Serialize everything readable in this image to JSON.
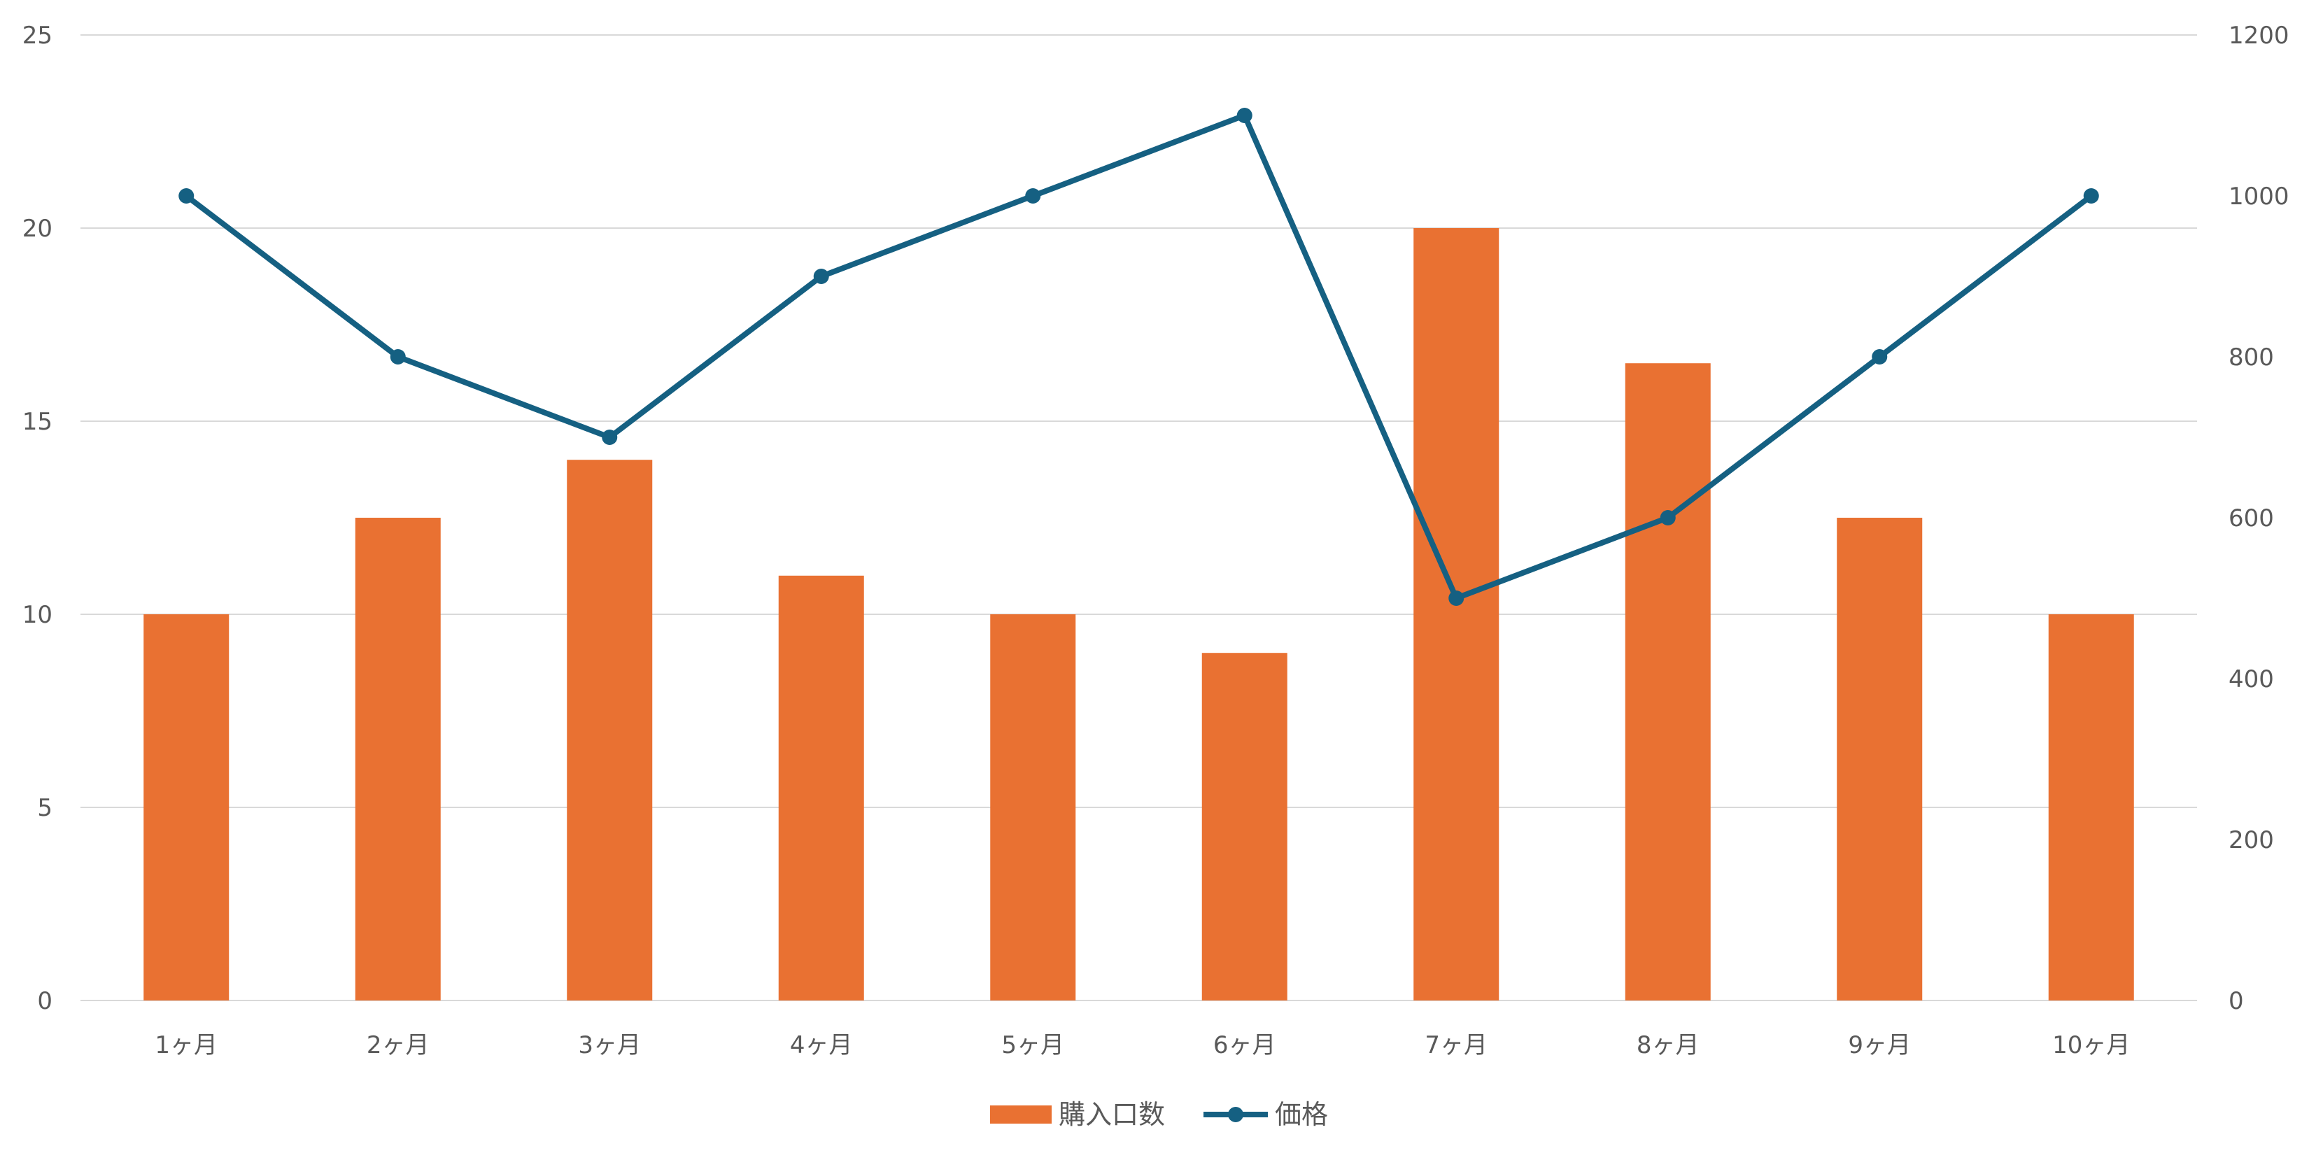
{
  "chart_data": {
    "type": "bar",
    "title": "",
    "xlabel": "",
    "ylabel": "",
    "categories": [
      "1ヶ月",
      "2ヶ月",
      "3ヶ月",
      "4ヶ月",
      "5ヶ月",
      "6ヶ月",
      "7ヶ月",
      "8ヶ月",
      "9ヶ月",
      "10ヶ月"
    ],
    "series": [
      {
        "name": "購入口数",
        "type": "bar",
        "axis": "left",
        "color": "#E97132",
        "values": [
          10,
          12.5,
          14,
          11,
          10,
          9,
          20,
          16.5,
          12.5,
          10
        ]
      },
      {
        "name": "価格",
        "type": "line",
        "axis": "right",
        "color": "#156082",
        "values": [
          1000,
          800,
          700,
          900,
          1000,
          1100,
          500,
          600,
          800,
          1000
        ]
      }
    ],
    "ylim": [
      0,
      25
    ],
    "yticks": [
      "0",
      "5",
      "10",
      "15",
      "20",
      "25"
    ],
    "y2lim": [
      0,
      1200
    ],
    "y2ticks": [
      "0",
      "200",
      "400",
      "600",
      "800",
      "1000",
      "1200"
    ],
    "grid": true,
    "legend": "bottom"
  }
}
